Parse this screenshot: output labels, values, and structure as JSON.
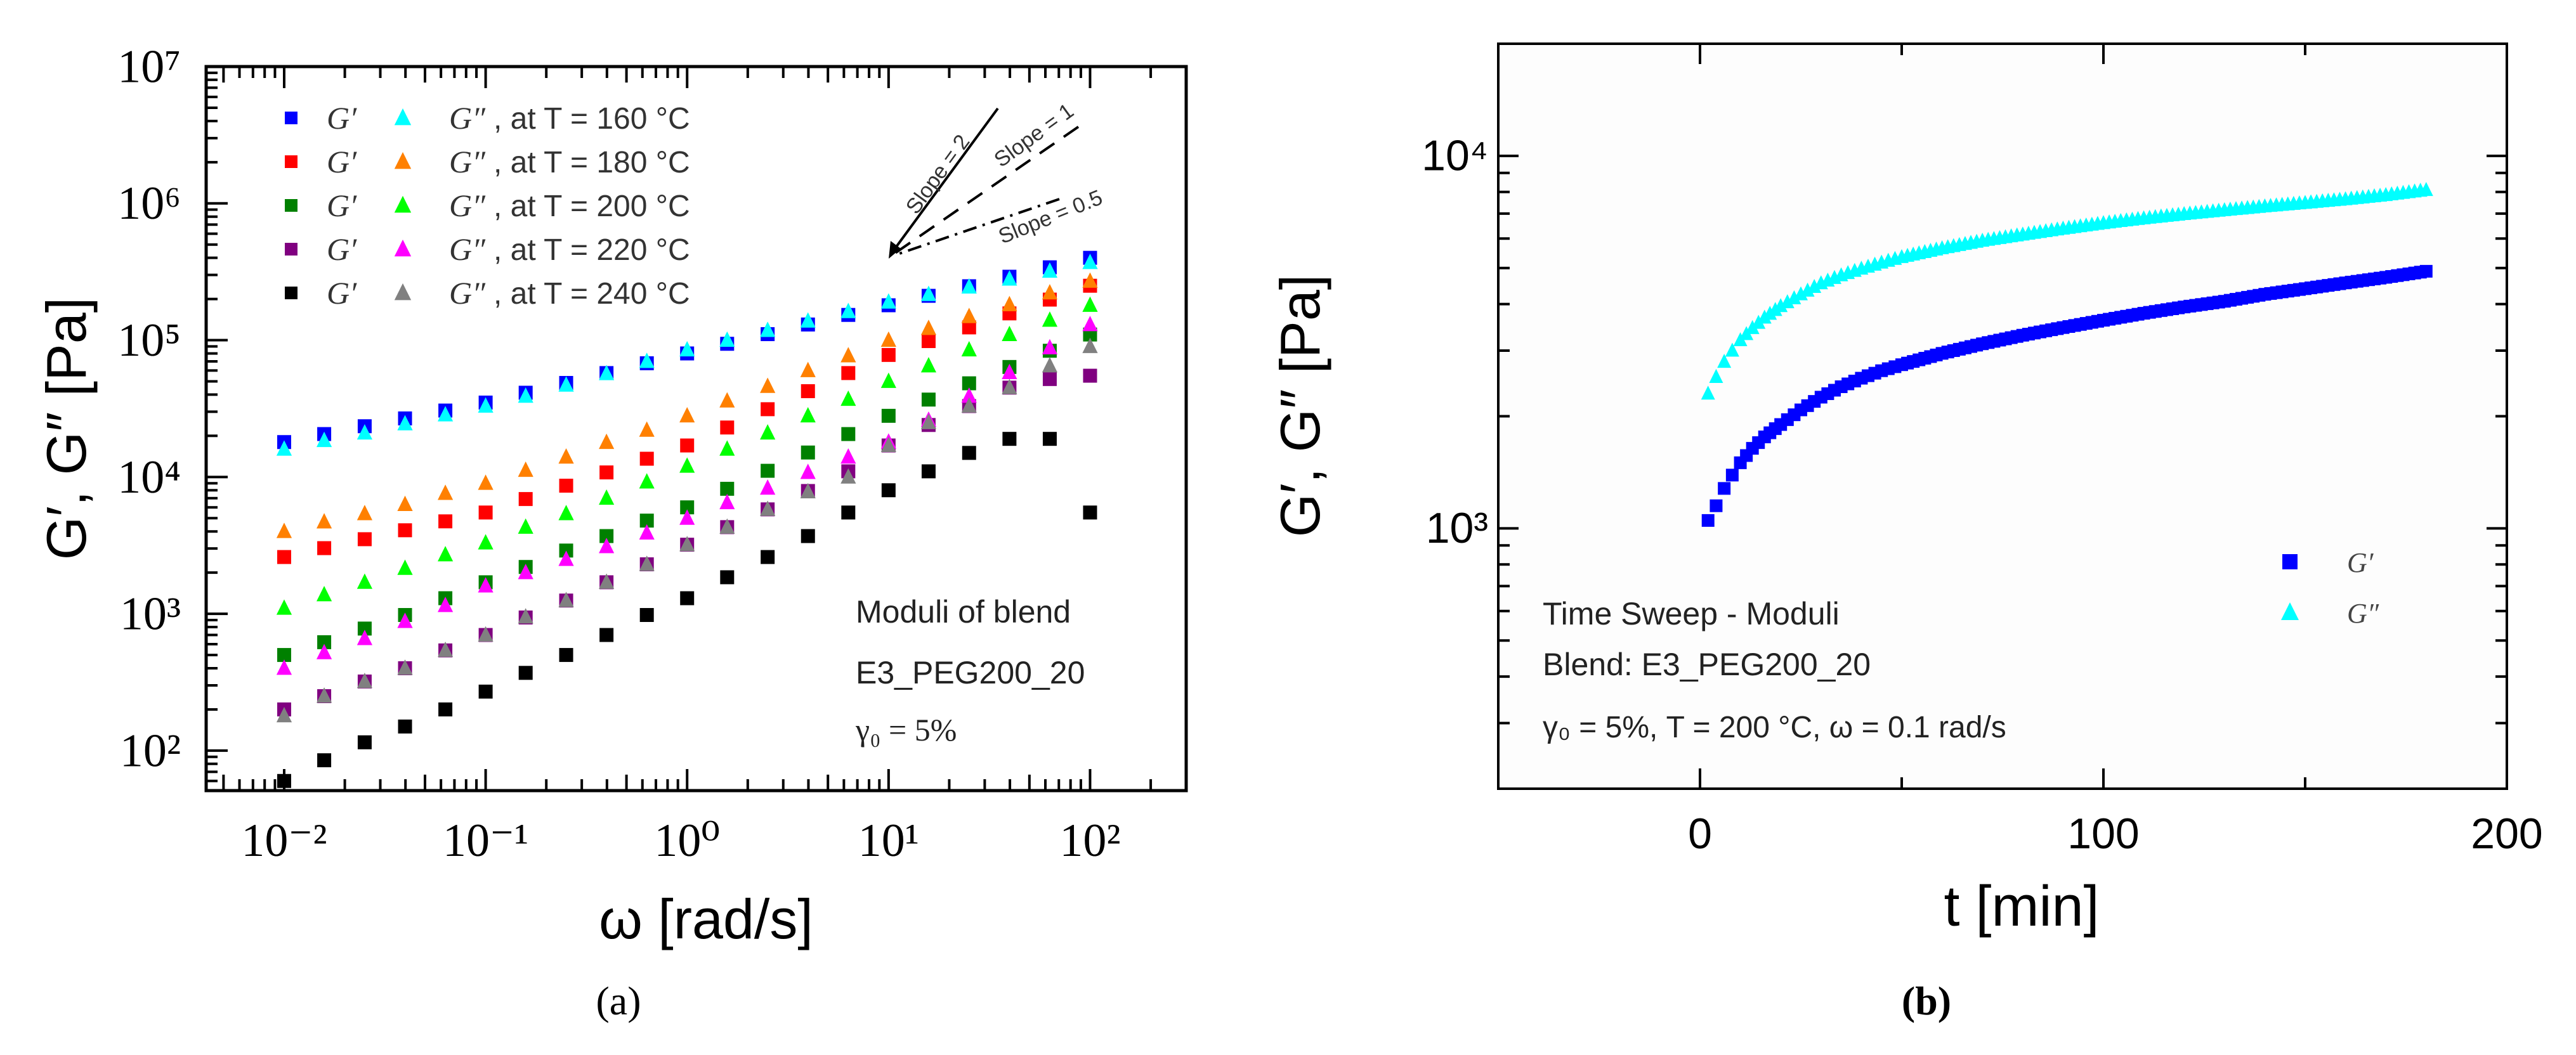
{
  "chart_data": [
    {
      "type": "scatter",
      "panel_label": "(a)",
      "xlabel": "ω [rad/s]",
      "ylabel": "G′, G″ [Pa]",
      "xscale": "log",
      "yscale": "log",
      "xlim": [
        0.0041,
        300
      ],
      "ylim": [
        51,
        10000000
      ],
      "xticks": [
        {
          "v": 0.01,
          "label": "10⁻²"
        },
        {
          "v": 0.1,
          "label": "10⁻¹"
        },
        {
          "v": 1,
          "label": "10⁰"
        },
        {
          "v": 10,
          "label": "10¹"
        },
        {
          "v": 100,
          "label": "10²"
        }
      ],
      "yticks": [
        {
          "v": 100,
          "label": "10²"
        },
        {
          "v": 1000,
          "label": "10³"
        },
        {
          "v": 10000,
          "label": "10⁴"
        },
        {
          "v": 100000,
          "label": "10⁵"
        },
        {
          "v": 1000000,
          "label": "10⁶"
        },
        {
          "v": 10000000,
          "label": "10⁷"
        }
      ],
      "legend_position": "top-left",
      "annotations": [
        "Moduli of blend",
        "E3_PEG200_20",
        "γ₀ = 5%"
      ],
      "slope_labels": [
        "Slope = 2",
        "Slope = 1",
        "Slope = 0.5"
      ],
      "x": [
        0.01,
        0.0158,
        0.0251,
        0.0398,
        0.0631,
        0.1,
        0.158,
        0.251,
        0.398,
        0.631,
        1,
        1.58,
        2.51,
        3.98,
        6.31,
        10,
        15.8,
        25.1,
        39.8,
        63.1,
        100
      ],
      "series": [
        {
          "name": "G′",
          "temperature": "160 °C",
          "legend": ", at T = 160 °C",
          "marker": "square",
          "color": "#0000ff",
          "values": [
            18000,
            20600,
            23500,
            26800,
            30600,
            35000,
            41300,
            48700,
            57500,
            67800,
            80000,
            94100,
            110700,
            130200,
            153000,
            180000,
            211000,
            248000,
            291000,
            341000,
            400000
          ]
        },
        {
          "name": "G″",
          "temperature": "160 °C",
          "marker": "triangle",
          "color": "#00ffff",
          "values": [
            16000,
            18500,
            21000,
            24500,
            28500,
            33000,
            39000,
            47000,
            57000,
            70000,
            85000,
            100000,
            118000,
            138000,
            162000,
            190000,
            216000,
            245000,
            280000,
            320000,
            370000
          ]
        },
        {
          "name": "G′",
          "temperature": "180 °C",
          "legend": ", at T = 180 °C",
          "marker": "square",
          "color": "#ff0000",
          "values": [
            2600,
            3020,
            3510,
            4080,
            4740,
            5500,
            6900,
            8640,
            10800,
            13600,
            17000,
            23000,
            31300,
            42400,
            57500,
            78000,
            98500,
            124000,
            157000,
            198000,
            250000
          ]
        },
        {
          "name": "G″",
          "temperature": "180 °C",
          "marker": "triangle",
          "color": "#ff8000",
          "values": [
            4000,
            4700,
            5400,
            6300,
            7600,
            9000,
            11200,
            14000,
            17900,
            22000,
            28000,
            36000,
            46000,
            60000,
            77000,
            100000,
            122000,
            149000,
            182000,
            222000,
            270000
          ]
        },
        {
          "name": "G′",
          "temperature": "200 °C",
          "legend": ", at T = 200 °C",
          "marker": "square",
          "color": "#008000",
          "values": [
            500,
            620,
            780,
            980,
            1300,
            1700,
            2200,
            2900,
            3700,
            4800,
            6000,
            8200,
            11100,
            15100,
            20600,
            28000,
            36800,
            48400,
            63700,
            83700,
            110000
          ]
        },
        {
          "name": "G″",
          "temperature": "200 °C",
          "marker": "triangle",
          "color": "#00ff00",
          "values": [
            1100,
            1380,
            1700,
            2150,
            2700,
            3300,
            4300,
            5400,
            7000,
            9200,
            12000,
            16000,
            21000,
            28000,
            37000,
            50000,
            65000,
            85000,
            110000,
            140000,
            180000
          ]
        },
        {
          "name": "G′",
          "temperature": "220 °C",
          "legend": ", at T = 220 °C",
          "marker": "square",
          "color": "#800080",
          "values": [
            200,
            250,
            320,
            400,
            540,
            700,
            940,
            1250,
            1700,
            2300,
            3200,
            4300,
            5800,
            7900,
            11000,
            17000,
            24000,
            33000,
            45000,
            52000,
            55000
          ]
        },
        {
          "name": "G″",
          "temperature": "220 °C",
          "marker": "triangle",
          "color": "#ff00ff",
          "values": [
            400,
            520,
            660,
            880,
            1150,
            1600,
            2000,
            2500,
            3100,
            3900,
            5000,
            6500,
            8300,
            10800,
            14000,
            18000,
            26000,
            39000,
            58000,
            88000,
            130000
          ]
        },
        {
          "name": "G′",
          "temperature": "240 °C",
          "legend": ", at T = 240 °C",
          "marker": "square",
          "color": "#000000",
          "values": [
            60,
            85,
            115,
            150,
            200,
            270,
            370,
            500,
            700,
            980,
            1300,
            1850,
            2600,
            3700,
            5500,
            8000,
            11000,
            15000,
            19000,
            19000,
            5500
          ]
        },
        {
          "name": "G″",
          "temperature": "240 °C",
          "marker": "triangle",
          "color": "#808080",
          "values": [
            180,
            250,
            320,
            400,
            540,
            700,
            950,
            1250,
            1700,
            2300,
            3200,
            4300,
            5800,
            7800,
            10000,
            17000,
            25000,
            33000,
            45000,
            65000,
            90000
          ]
        }
      ]
    },
    {
      "type": "scatter",
      "panel_label": "(b)",
      "xlabel": "t [min]",
      "ylabel": "G′, G″ [Pa]",
      "xscale": "linear",
      "yscale": "log",
      "xlim": [
        -50,
        200
      ],
      "ylim": [
        200,
        20000
      ],
      "xticks": [
        {
          "v": 0,
          "label": "0"
        },
        {
          "v": 100,
          "label": "100"
        },
        {
          "v": 200,
          "label": "200"
        }
      ],
      "yticks": [
        {
          "v": 1000,
          "label": "10³"
        },
        {
          "v": 10000,
          "label": "10⁴"
        }
      ],
      "legend_position": "bottom-right",
      "annotations": [
        "Time Sweep - Moduli",
        "Blend: E3_PEG200_20",
        "γ₀ = 5%, T = 200 °C, ω = 0.1 rad/s"
      ],
      "x": [
        2,
        4,
        6,
        8,
        10,
        13,
        16,
        20,
        25,
        30,
        35,
        40,
        45,
        50,
        60,
        70,
        80,
        90,
        100,
        110,
        120,
        130,
        140,
        150,
        160,
        170,
        180
      ],
      "series": [
        {
          "name": "G′",
          "marker": "square",
          "color": "#0000ff",
          "values": [
            1050,
            1150,
            1280,
            1390,
            1500,
            1640,
            1760,
            1900,
            2080,
            2250,
            2400,
            2530,
            2650,
            2750,
            2950,
            3130,
            3300,
            3460,
            3620,
            3780,
            3930,
            4070,
            4250,
            4400,
            4560,
            4720,
            4900
          ]
        },
        {
          "name": "G″",
          "marker": "triangle",
          "color": "#00ffff",
          "values": [
            2300,
            2550,
            2800,
            3000,
            3200,
            3450,
            3680,
            3950,
            4250,
            4550,
            4780,
            4980,
            5170,
            5350,
            5650,
            5920,
            6150,
            6380,
            6600,
            6800,
            6980,
            7150,
            7320,
            7480,
            7650,
            7850,
            8100
          ]
        }
      ]
    }
  ]
}
